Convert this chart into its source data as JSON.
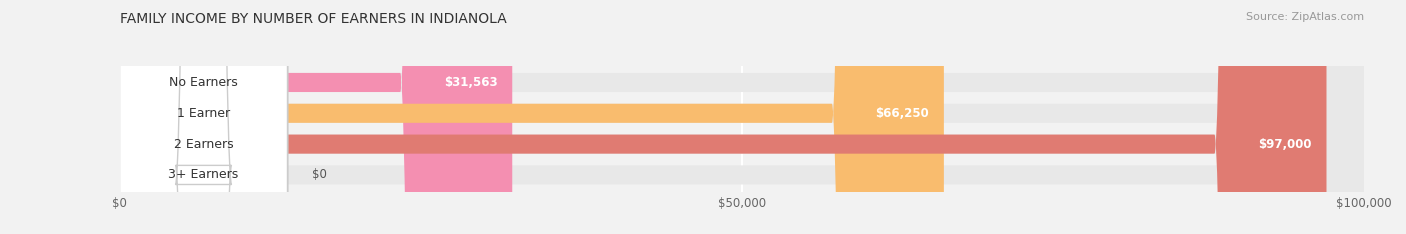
{
  "title": "FAMILY INCOME BY NUMBER OF EARNERS IN INDIANOLA",
  "source": "Source: ZipAtlas.com",
  "categories": [
    "No Earners",
    "1 Earner",
    "2 Earners",
    "3+ Earners"
  ],
  "values": [
    31563,
    66250,
    97000,
    0
  ],
  "bar_colors": [
    "#f48fb1",
    "#f9bc6e",
    "#e07b72",
    "#a8c4e0"
  ],
  "value_labels": [
    "$31,563",
    "$66,250",
    "$97,000",
    "$0"
  ],
  "xlim": [
    0,
    100000
  ],
  "xticks": [
    0,
    50000,
    100000
  ],
  "xtick_labels": [
    "$0",
    "$50,000",
    "$100,000"
  ],
  "background_color": "#f2f2f2",
  "bar_bg_color": "#e8e8e8",
  "title_fontsize": 10,
  "source_fontsize": 8,
  "label_fontsize": 9,
  "value_fontsize": 8.5
}
